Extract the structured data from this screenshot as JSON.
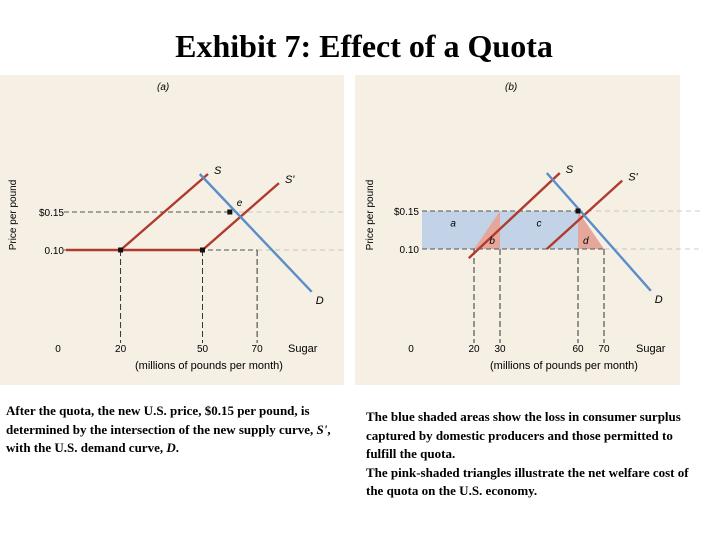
{
  "title": "Exhibit 7: Effect of a Quota",
  "chart_data": [
    {
      "type": "line",
      "panel_label": "(a)",
      "ylabel": "Price per pound",
      "xlabel_main": "Sugar",
      "xlabel_sub": "(millions of pounds per month)",
      "x_ticks": [
        0,
        20,
        50,
        70
      ],
      "x_tick_labels": [
        "0",
        "20",
        "50",
        "70"
      ],
      "y_ticks": [
        0.15,
        0.1
      ],
      "y_tick_labels": [
        "$0.15",
        "0.10"
      ],
      "series": [
        {
          "name": "S",
          "label": "S",
          "color": "#b03a2e",
          "points": [
            [
              20,
              0.1
            ],
            [
              52,
              0.2
            ]
          ]
        },
        {
          "name": "S'",
          "label": "S'",
          "color": "#b03a2e",
          "points": [
            [
              0,
              0.1
            ],
            [
              50,
              0.1
            ],
            [
              78,
              0.188
            ]
          ]
        },
        {
          "name": "D",
          "label": "D",
          "color": "#5b8dc8",
          "points": [
            [
              49,
              0.2
            ],
            [
              90,
              0.045
            ]
          ]
        }
      ],
      "points": [
        {
          "label": "",
          "x": 20,
          "y": 0.1
        },
        {
          "label": "",
          "x": 50,
          "y": 0.1
        },
        {
          "label": "e",
          "x": 60,
          "y": 0.15
        }
      ],
      "guides": [
        {
          "type": "h",
          "y": 0.15,
          "to_x": 60
        },
        {
          "type": "h",
          "y": 0.1,
          "to_x": 70
        },
        {
          "type": "v",
          "x": 20
        },
        {
          "type": "v",
          "x": 50
        },
        {
          "type": "v",
          "x": 70
        }
      ]
    },
    {
      "type": "line",
      "panel_label": "(b)",
      "ylabel": "Price per pound",
      "xlabel_main": "Sugar",
      "xlabel_sub": "(millions of pounds per month)",
      "x_ticks": [
        0,
        20,
        30,
        60,
        70
      ],
      "x_tick_labels": [
        "0",
        "20",
        "30",
        "60",
        "70"
      ],
      "y_ticks": [
        0.15,
        0.1
      ],
      "y_tick_labels": [
        "$0.15",
        "0.10"
      ],
      "series": [
        {
          "name": "S",
          "label": "S",
          "color": "#b03a2e",
          "points": [
            [
              18,
              0.088
            ],
            [
              53,
              0.2
            ]
          ]
        },
        {
          "name": "S'",
          "label": "S'",
          "color": "#b03a2e",
          "points": [
            [
              48,
              0.1
            ],
            [
              77,
              0.19
            ]
          ]
        },
        {
          "name": "D",
          "label": "D",
          "color": "#5b8dc8",
          "points": [
            [
              48,
              0.2
            ],
            [
              88,
              0.045
            ]
          ]
        }
      ],
      "areas": [
        {
          "label": "a",
          "color": "#c2d3e8",
          "points": [
            [
              0,
              0.15
            ],
            [
              30,
              0.15
            ],
            [
              30,
              0.1
            ],
            [
              0,
              0.1
            ]
          ]
        },
        {
          "label": "b",
          "color": "#e5a79c",
          "points": [
            [
              20,
              0.1
            ],
            [
              30,
              0.15
            ],
            [
              30,
              0.1
            ]
          ]
        },
        {
          "label": "c",
          "color": "#c2d3e8",
          "points": [
            [
              30,
              0.15
            ],
            [
              60,
              0.15
            ],
            [
              60,
              0.1
            ],
            [
              30,
              0.1
            ]
          ]
        },
        {
          "label": "d",
          "color": "#e5a79c",
          "points": [
            [
              60,
              0.15
            ],
            [
              70,
              0.1
            ],
            [
              60,
              0.1
            ]
          ]
        }
      ],
      "points": [
        {
          "label": "",
          "x": 60,
          "y": 0.15
        }
      ],
      "guides": [
        {
          "type": "h",
          "y": 0.15,
          "to_x": 60
        },
        {
          "type": "h",
          "y": 0.1,
          "to_x": 70
        },
        {
          "type": "v",
          "x": 20
        },
        {
          "type": "v",
          "x": 30
        },
        {
          "type": "v",
          "x": 60
        },
        {
          "type": "v",
          "x": 70
        }
      ]
    }
  ],
  "caption_a": {
    "text1": "After the quota, the new U.S. price, $0.15 per pound, is determined by the intersection of the new supply curve, ",
    "italic1": "S'",
    "text2": ", with the U.S. demand curve, ",
    "italic2": "D",
    "text3": "."
  },
  "caption_b": {
    "p1": "The blue shaded areas show the loss in consumer surplus captured by domestic producers and those permitted to fulfill the quota.",
    "p2": "The pink-shaded triangles illustrate the net welfare cost of the quota on the U.S. economy."
  }
}
